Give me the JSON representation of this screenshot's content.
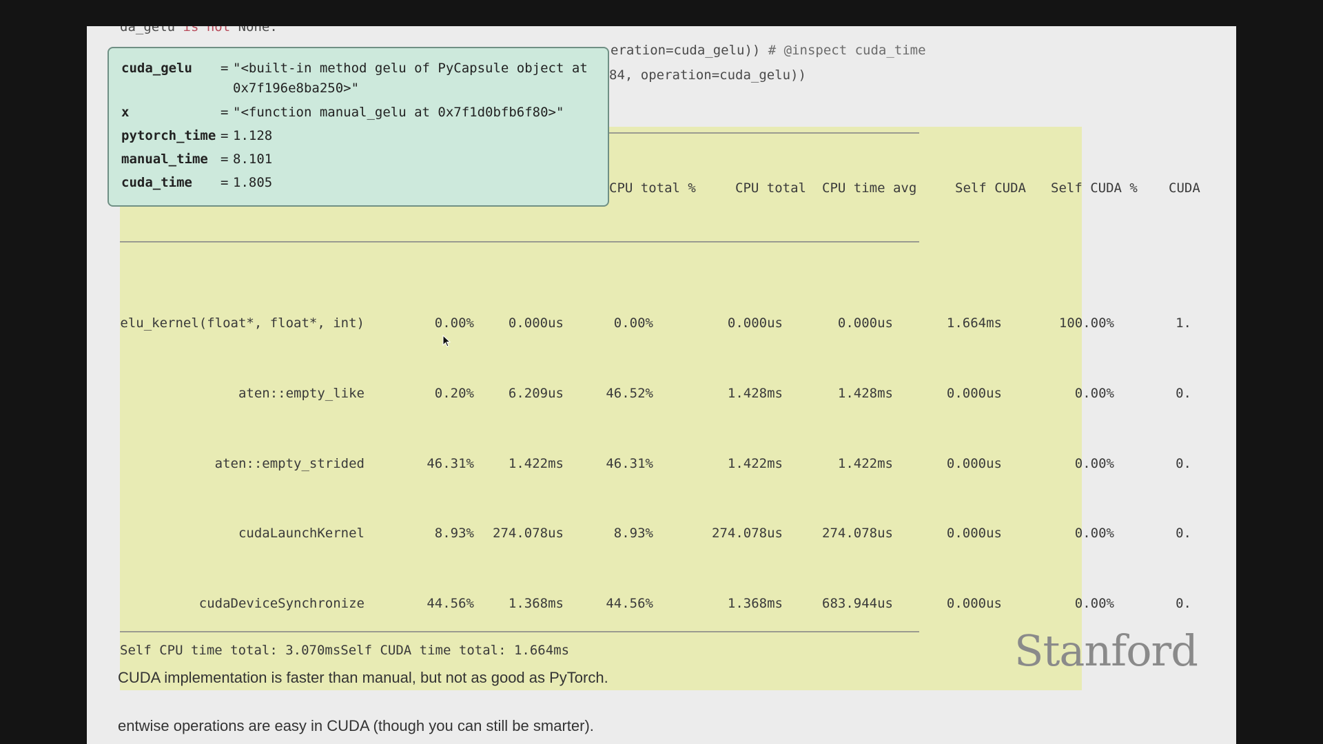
{
  "code": {
    "line0_prefix": "da_gelu ",
    "line0_kw": "is not",
    "line0_rest": " None:",
    "line1_visible": "eration=cuda_gelu)) ",
    "line1_comment": "# @inspect cuda_time",
    "line2_visible": "84, operation=cuda_gelu))"
  },
  "tooltip": {
    "vars": [
      {
        "name": "cuda_gelu",
        "value": "\"<built-in method gelu of PyCapsule object at",
        "value_cont": "0x7f196e8ba250>\""
      },
      {
        "name": "x",
        "value": "\"<function manual_gelu at 0x7f1d0bfb6f80>\""
      },
      {
        "name": "pytorch_time",
        "value": "1.128"
      },
      {
        "name": "manual_time",
        "value": "8.101"
      },
      {
        "name": "cuda_time",
        "value": "1.805"
      }
    ]
  },
  "table": {
    "headers": [
      "CPU total %",
      "CPU total",
      "CPU time avg",
      "Self CUDA",
      "Self CUDA %",
      "CUDA"
    ],
    "rows": [
      {
        "name": "elu_kernel(float*, float*, int)",
        "cells": [
          "0.00%",
          "0.000us",
          "0.00%",
          "0.000us",
          "0.000us",
          "1.664ms",
          "100.00%",
          "1."
        ]
      },
      {
        "name": "aten::empty_like",
        "cells": [
          "0.20%",
          "6.209us",
          "46.52%",
          "1.428ms",
          "1.428ms",
          "0.000us",
          "0.00%",
          "0."
        ]
      },
      {
        "name": "aten::empty_strided",
        "cells": [
          "46.31%",
          "1.422ms",
          "46.31%",
          "1.422ms",
          "1.422ms",
          "0.000us",
          "0.00%",
          "0."
        ]
      },
      {
        "name": "cudaLaunchKernel",
        "cells": [
          "8.93%",
          "274.078us",
          "8.93%",
          "274.078us",
          "274.078us",
          "0.000us",
          "0.00%",
          "0."
        ]
      },
      {
        "name": "cudaDeviceSynchronize",
        "cells": [
          "44.56%",
          "1.368ms",
          "44.56%",
          "1.368ms",
          "683.944us",
          "0.000us",
          "0.00%",
          "0."
        ]
      }
    ],
    "footer": "Self CPU time total: 3.070msSelf CUDA time total: 1.664ms"
  },
  "prose": {
    "line1": "CUDA implementation is faster than manual, but not as good as PyTorch.",
    "line2": "entwise operations are easy in CUDA (though you can still be smarter)."
  },
  "logo": "Stanford",
  "eq_sign": "="
}
